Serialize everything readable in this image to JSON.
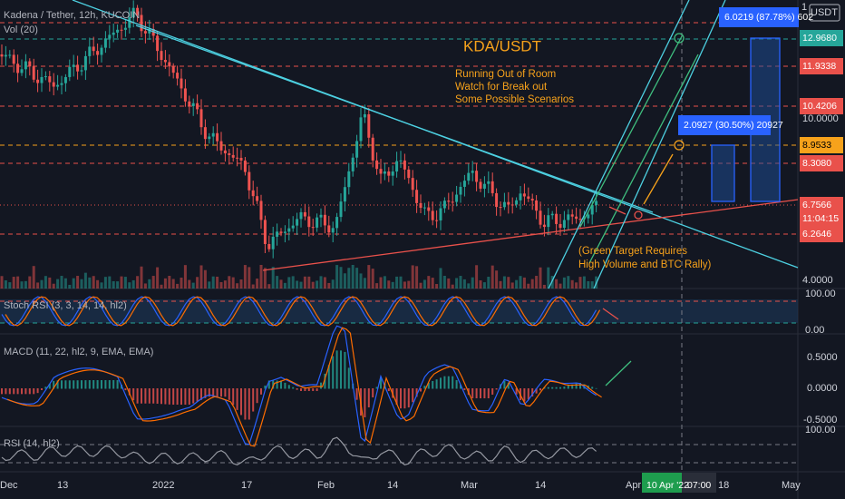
{
  "header": {
    "symbol": "Kadena / Tether, 12h, KUCOIN",
    "volume": "Vol (20)",
    "currency": "USDT"
  },
  "annotations": {
    "title": "KDA/USDT",
    "notes": [
      "Running Out of Room",
      "Watch for Break out",
      "Some Possible Scenarios"
    ],
    "green_target": [
      "(Green Target Requires",
      "High Volume and BTC Rally)"
    ],
    "target1": "2.0927 (30.50%) 20927",
    "target2": "6.0219 (87.78%) 602"
  },
  "price_axis": {
    "top": "1",
    "labels": [
      "12.9680",
      "11.9338",
      "10.4206",
      "10.0000",
      "8.9533",
      "8.3080",
      "6.7566",
      "11:04:15",
      "6.2646",
      "4.0000"
    ]
  },
  "stoch_rsi": {
    "title": "Stoch RSI (3, 3, 14, 14, hl2)",
    "ticks": [
      "100.00",
      "0.00"
    ]
  },
  "macd": {
    "title": "MACD (11, 22, hl2, 9, EMA, EMA)",
    "ticks": [
      "0.5000",
      "0.0000",
      "-0.5000"
    ]
  },
  "rsi": {
    "title": "RSI (14, hl2)",
    "ticks": [
      "100.00"
    ]
  },
  "time_axis": {
    "labels": [
      "Dec",
      "13",
      "2022",
      "17",
      "Feb",
      "14",
      "Mar",
      "14",
      "Apr",
      "18",
      "May"
    ],
    "cursor_date": "10 Apr '22",
    "cursor_time": "07:00"
  }
}
